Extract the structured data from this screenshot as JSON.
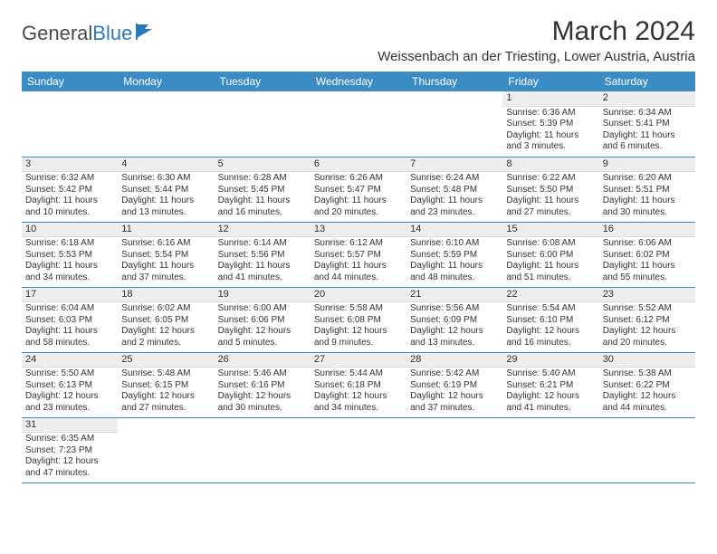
{
  "logo": {
    "general": "General",
    "blue": "Blue"
  },
  "title": "March 2024",
  "location": "Weissenbach an der Triesting, Lower Austria, Austria",
  "dayHeaders": [
    "Sunday",
    "Monday",
    "Tuesday",
    "Wednesday",
    "Thursday",
    "Friday",
    "Saturday"
  ],
  "weeks": [
    [
      null,
      null,
      null,
      null,
      null,
      {
        "n": "1",
        "sr": "6:36 AM",
        "ss": "5:39 PM",
        "dl": "11 hours and 3 minutes."
      },
      {
        "n": "2",
        "sr": "6:34 AM",
        "ss": "5:41 PM",
        "dl": "11 hours and 6 minutes."
      }
    ],
    [
      {
        "n": "3",
        "sr": "6:32 AM",
        "ss": "5:42 PM",
        "dl": "11 hours and 10 minutes."
      },
      {
        "n": "4",
        "sr": "6:30 AM",
        "ss": "5:44 PM",
        "dl": "11 hours and 13 minutes."
      },
      {
        "n": "5",
        "sr": "6:28 AM",
        "ss": "5:45 PM",
        "dl": "11 hours and 16 minutes."
      },
      {
        "n": "6",
        "sr": "6:26 AM",
        "ss": "5:47 PM",
        "dl": "11 hours and 20 minutes."
      },
      {
        "n": "7",
        "sr": "6:24 AM",
        "ss": "5:48 PM",
        "dl": "11 hours and 23 minutes."
      },
      {
        "n": "8",
        "sr": "6:22 AM",
        "ss": "5:50 PM",
        "dl": "11 hours and 27 minutes."
      },
      {
        "n": "9",
        "sr": "6:20 AM",
        "ss": "5:51 PM",
        "dl": "11 hours and 30 minutes."
      }
    ],
    [
      {
        "n": "10",
        "sr": "6:18 AM",
        "ss": "5:53 PM",
        "dl": "11 hours and 34 minutes."
      },
      {
        "n": "11",
        "sr": "6:16 AM",
        "ss": "5:54 PM",
        "dl": "11 hours and 37 minutes."
      },
      {
        "n": "12",
        "sr": "6:14 AM",
        "ss": "5:56 PM",
        "dl": "11 hours and 41 minutes."
      },
      {
        "n": "13",
        "sr": "6:12 AM",
        "ss": "5:57 PM",
        "dl": "11 hours and 44 minutes."
      },
      {
        "n": "14",
        "sr": "6:10 AM",
        "ss": "5:59 PM",
        "dl": "11 hours and 48 minutes."
      },
      {
        "n": "15",
        "sr": "6:08 AM",
        "ss": "6:00 PM",
        "dl": "11 hours and 51 minutes."
      },
      {
        "n": "16",
        "sr": "6:06 AM",
        "ss": "6:02 PM",
        "dl": "11 hours and 55 minutes."
      }
    ],
    [
      {
        "n": "17",
        "sr": "6:04 AM",
        "ss": "6:03 PM",
        "dl": "11 hours and 58 minutes."
      },
      {
        "n": "18",
        "sr": "6:02 AM",
        "ss": "6:05 PM",
        "dl": "12 hours and 2 minutes."
      },
      {
        "n": "19",
        "sr": "6:00 AM",
        "ss": "6:06 PM",
        "dl": "12 hours and 5 minutes."
      },
      {
        "n": "20",
        "sr": "5:58 AM",
        "ss": "6:08 PM",
        "dl": "12 hours and 9 minutes."
      },
      {
        "n": "21",
        "sr": "5:56 AM",
        "ss": "6:09 PM",
        "dl": "12 hours and 13 minutes."
      },
      {
        "n": "22",
        "sr": "5:54 AM",
        "ss": "6:10 PM",
        "dl": "12 hours and 16 minutes."
      },
      {
        "n": "23",
        "sr": "5:52 AM",
        "ss": "6:12 PM",
        "dl": "12 hours and 20 minutes."
      }
    ],
    [
      {
        "n": "24",
        "sr": "5:50 AM",
        "ss": "6:13 PM",
        "dl": "12 hours and 23 minutes."
      },
      {
        "n": "25",
        "sr": "5:48 AM",
        "ss": "6:15 PM",
        "dl": "12 hours and 27 minutes."
      },
      {
        "n": "26",
        "sr": "5:46 AM",
        "ss": "6:16 PM",
        "dl": "12 hours and 30 minutes."
      },
      {
        "n": "27",
        "sr": "5:44 AM",
        "ss": "6:18 PM",
        "dl": "12 hours and 34 minutes."
      },
      {
        "n": "28",
        "sr": "5:42 AM",
        "ss": "6:19 PM",
        "dl": "12 hours and 37 minutes."
      },
      {
        "n": "29",
        "sr": "5:40 AM",
        "ss": "6:21 PM",
        "dl": "12 hours and 41 minutes."
      },
      {
        "n": "30",
        "sr": "5:38 AM",
        "ss": "6:22 PM",
        "dl": "12 hours and 44 minutes."
      }
    ],
    [
      {
        "n": "31",
        "sr": "6:35 AM",
        "ss": "7:23 PM",
        "dl": "12 hours and 47 minutes."
      },
      null,
      null,
      null,
      null,
      null,
      null
    ]
  ],
  "labels": {
    "sunrise": "Sunrise: ",
    "sunset": "Sunset: ",
    "daylight": "Daylight: "
  },
  "colors": {
    "headerBg": "#3b8bc4",
    "rowLine": "#3b8bc4",
    "dayNumBg": "#eeeeee"
  }
}
